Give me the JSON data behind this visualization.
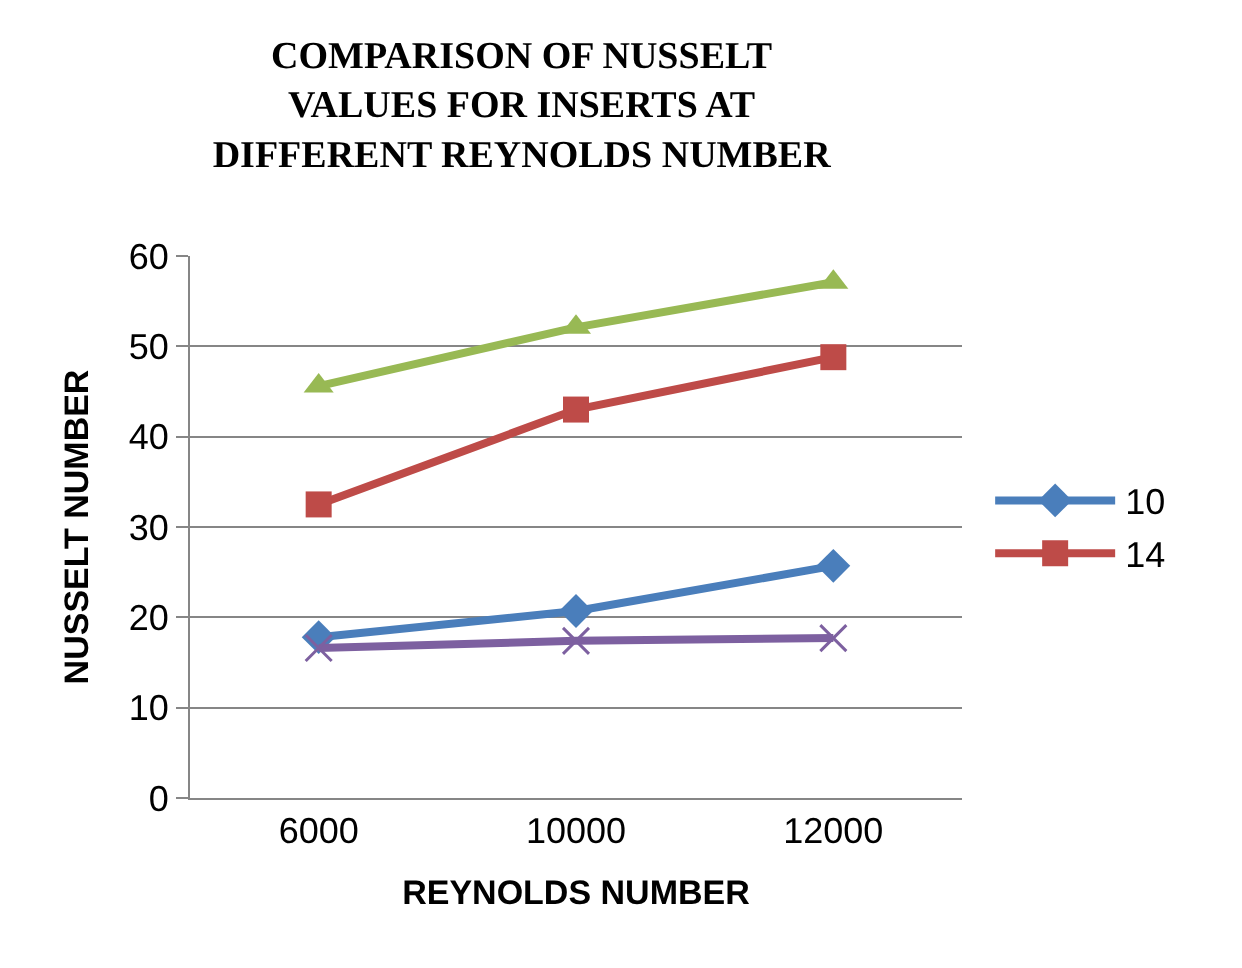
{
  "chart_data": {
    "type": "line",
    "title": "COMPARISON OF NUSSELT\nVALUES FOR INSERTS AT\nDIFFERENT REYNOLDS NUMBER",
    "xlabel": "REYNOLDS NUMBER",
    "ylabel": "NUSSELT NUMBER",
    "categories": [
      "6000",
      "10000",
      "12000"
    ],
    "series": [
      {
        "name": "10",
        "color": "#4a7ebb",
        "marker": "diamond",
        "values": [
          17.8,
          20.7,
          25.7
        ]
      },
      {
        "name": "14",
        "color": "#be4b48",
        "marker": "square",
        "values": [
          32.5,
          43,
          48.8
        ]
      },
      {
        "color": "#98b954",
        "marker": "triangle",
        "values": [
          45.6,
          52.1,
          57.1
        ]
      },
      {
        "color": "#7d60a0",
        "marker": "cross",
        "values": [
          16.6,
          17.4,
          17.7
        ]
      }
    ],
    "ylim": [
      0,
      60
    ],
    "yticks": [
      0,
      10,
      20,
      30,
      40,
      50,
      60
    ],
    "grid": "y",
    "legend": "right"
  }
}
